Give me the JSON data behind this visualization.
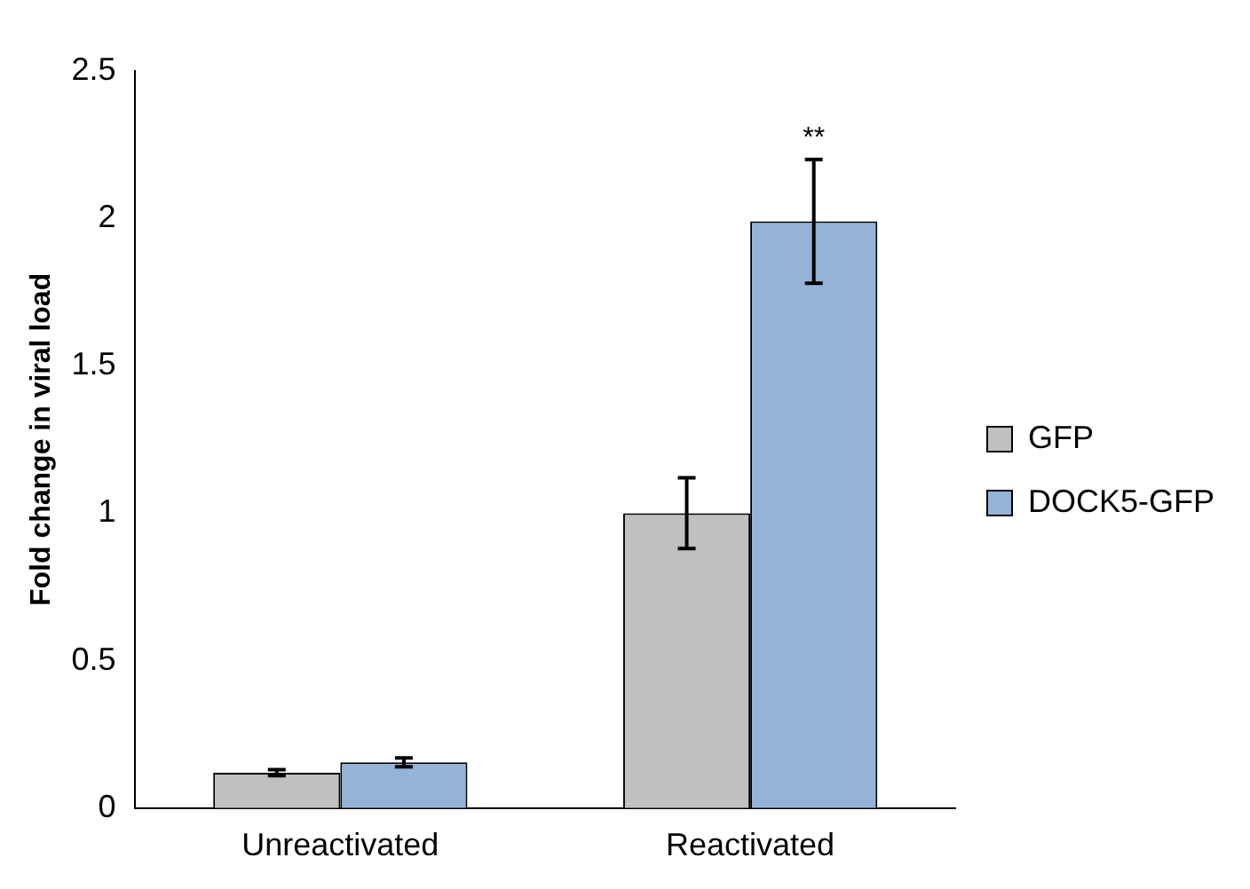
{
  "chart_data": {
    "type": "bar",
    "ylabel": "Fold change in viral load",
    "categories": [
      "Unreactivated",
      "Reactivated"
    ],
    "series": [
      {
        "name": "GFP",
        "color": "#c0c0c0",
        "values": [
          0.12,
          1.0
        ],
        "errors": [
          0.01,
          0.12
        ]
      },
      {
        "name": "DOCK5-GFP",
        "color": "#95b3d7",
        "values": [
          0.155,
          1.99
        ],
        "errors": [
          0.015,
          0.21
        ]
      }
    ],
    "ylim": [
      0,
      2.5
    ],
    "yticks": [
      0,
      0.5,
      1,
      1.5,
      2,
      2.5
    ],
    "grid": false,
    "legend": "right",
    "annotations": [
      "**"
    ]
  }
}
